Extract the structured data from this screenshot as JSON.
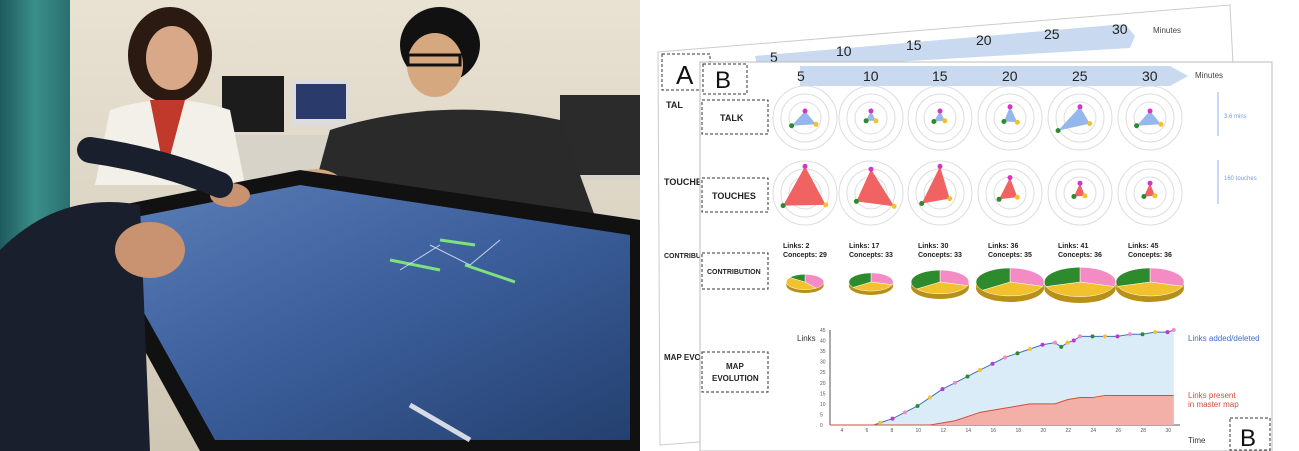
{
  "panel_a_letter": "A",
  "panel_b_letter": "B",
  "panel_b_corner_letter": "B",
  "minutes_label": "Minutes",
  "time_ticks": [
    "5",
    "10",
    "15",
    "20",
    "25",
    "30"
  ],
  "back_sheet_labels": [
    "TAL",
    "TOUCHES",
    "CONTRIBUTI",
    "MAP EVOLUTI"
  ],
  "rows": {
    "talk": "TALK",
    "touches": "TOUCHES",
    "contribution": "CONTRIBUTION",
    "map_evolution_line1": "MAP",
    "map_evolution_line2": "EVOLUTION"
  },
  "scale_notes": {
    "talk": "3.6 mins",
    "touches": "160 touches"
  },
  "contributions": [
    {
      "links": "Links: 2",
      "concepts": "Concepts: 29"
    },
    {
      "links": "Links: 17",
      "concepts": "Concepts: 33"
    },
    {
      "links": "Links: 30",
      "concepts": "Concepts: 33"
    },
    {
      "links": "Links: 36",
      "concepts": "Concepts: 35"
    },
    {
      "links": "Links: 41",
      "concepts": "Concepts: 36"
    },
    {
      "links": "Links: 45",
      "concepts": "Concepts: 36"
    }
  ],
  "talk_triangles": [
    {
      "pink": 0.25,
      "green": 0.55,
      "yellow": 0.45
    },
    {
      "pink": 0.25,
      "green": 0.2,
      "yellow": 0.2
    },
    {
      "pink": 0.25,
      "green": 0.25,
      "yellow": 0.2
    },
    {
      "pink": 0.4,
      "green": 0.25,
      "yellow": 0.3
    },
    {
      "pink": 0.4,
      "green": 0.9,
      "yellow": 0.4
    },
    {
      "pink": 0.25,
      "green": 0.55,
      "yellow": 0.45
    }
  ],
  "touch_triangles": [
    {
      "pink": 0.95,
      "green": 0.9,
      "yellow": 0.85
    },
    {
      "pink": 0.85,
      "green": 0.6,
      "yellow": 0.95
    },
    {
      "pink": 0.95,
      "green": 0.75,
      "yellow": 0.4
    },
    {
      "pink": 0.55,
      "green": 0.45,
      "yellow": 0.3
    },
    {
      "pink": 0.35,
      "green": 0.25,
      "yellow": 0.2
    },
    {
      "pink": 0.35,
      "green": 0.25,
      "yellow": 0.2
    }
  ],
  "pies": [
    {
      "scale": 0.55,
      "pink": 0.4,
      "green": 0.15,
      "yellow": 0.45
    },
    {
      "scale": 0.65,
      "pink": 0.3,
      "green": 0.35,
      "yellow": 0.35
    },
    {
      "scale": 0.85,
      "pink": 0.3,
      "green": 0.35,
      "yellow": 0.35
    },
    {
      "scale": 1.0,
      "pink": 0.3,
      "green": 0.35,
      "yellow": 0.35
    },
    {
      "scale": 1.05,
      "pink": 0.3,
      "green": 0.3,
      "yellow": 0.4
    },
    {
      "scale": 1.0,
      "pink": 0.3,
      "green": 0.3,
      "yellow": 0.4
    }
  ],
  "map_chart": {
    "ylabel": "Links",
    "xlabel": "Time",
    "yticks": [
      "45",
      "40",
      "35",
      "30",
      "25",
      "20",
      "15",
      "10",
      "5",
      "0"
    ],
    "xticks": [
      "4",
      "6",
      "8",
      "10",
      "12",
      "14",
      "16",
      "18",
      "20",
      "22",
      "24",
      "26",
      "28",
      "30"
    ],
    "legend_added": "Links added/deleted",
    "legend_present_line1": "Links present",
    "legend_present_line2": "in master map",
    "ylim": [
      0,
      45
    ],
    "xlim": [
      3,
      31
    ],
    "added_series": [
      [
        3,
        0
      ],
      [
        6.5,
        0
      ],
      [
        7,
        1
      ],
      [
        8,
        3
      ],
      [
        9,
        6
      ],
      [
        10,
        9
      ],
      [
        11,
        13
      ],
      [
        12,
        17
      ],
      [
        13,
        20
      ],
      [
        14,
        23
      ],
      [
        15,
        26
      ],
      [
        16,
        29
      ],
      [
        17,
        32
      ],
      [
        18,
        34
      ],
      [
        19,
        36
      ],
      [
        20,
        38
      ],
      [
        21,
        39
      ],
      [
        21.5,
        37
      ],
      [
        22,
        39
      ],
      [
        22.5,
        40
      ],
      [
        23,
        42
      ],
      [
        24,
        42
      ],
      [
        25,
        42
      ],
      [
        26,
        42
      ],
      [
        27,
        43
      ],
      [
        28,
        43
      ],
      [
        29,
        44
      ],
      [
        30,
        44
      ],
      [
        30.5,
        45
      ]
    ],
    "present_series": [
      [
        3,
        0
      ],
      [
        11,
        0
      ],
      [
        12,
        1
      ],
      [
        13,
        2
      ],
      [
        14,
        4
      ],
      [
        15,
        6
      ],
      [
        16,
        7
      ],
      [
        17,
        8
      ],
      [
        18,
        9
      ],
      [
        19,
        10
      ],
      [
        20,
        10
      ],
      [
        21,
        10
      ],
      [
        22,
        12
      ],
      [
        23,
        13
      ],
      [
        24,
        13
      ],
      [
        25,
        14
      ],
      [
        26,
        14
      ],
      [
        27,
        14
      ],
      [
        28,
        14
      ],
      [
        29,
        14
      ],
      [
        30,
        14
      ],
      [
        30.5,
        14
      ]
    ]
  },
  "colors": {
    "talk_fill": "#8fb3ea",
    "touch_fill": "#f05a5a",
    "pink": "#f48bc5",
    "green": "#2d8b2d",
    "yellow": "#f2c12e",
    "added_fill": "#d9ecf7",
    "added_line": "#3f6fbf",
    "present_fill": "#f3b0a8",
    "present_line": "#d94b3d"
  }
}
